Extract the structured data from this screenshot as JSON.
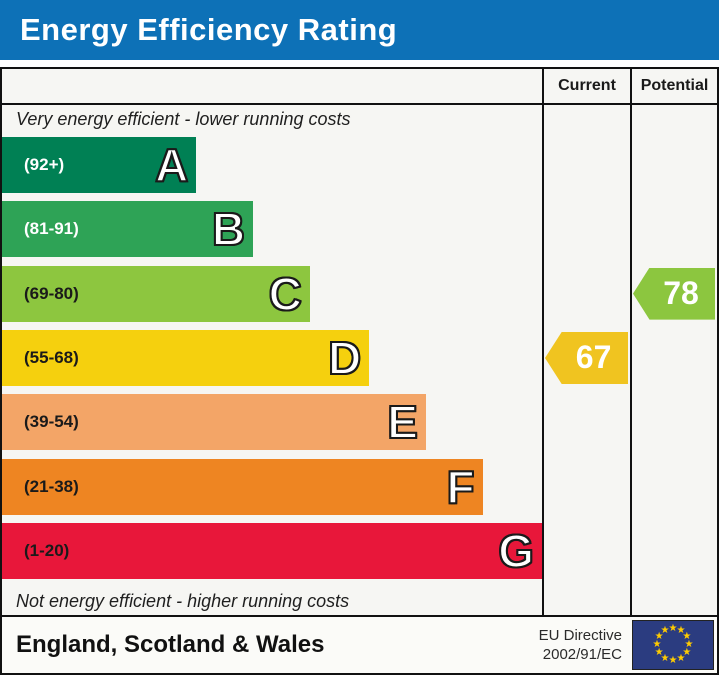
{
  "title": "Energy Efficiency Rating",
  "columns": {
    "current": "Current",
    "potential": "Potential"
  },
  "notes": {
    "top": "Very energy efficient - lower running costs",
    "bottom": "Not energy efficient - higher running costs"
  },
  "bands": [
    {
      "letter": "A",
      "range": "(92+)",
      "color": "#008054",
      "width_pct": 36,
      "label_color": "#ffffff"
    },
    {
      "letter": "B",
      "range": "(81-91)",
      "color": "#2ea356",
      "width_pct": 46.5,
      "label_color": "#ffffff"
    },
    {
      "letter": "C",
      "range": "(69-80)",
      "color": "#8dc63f",
      "width_pct": 57,
      "label_color": "#1a1a1a"
    },
    {
      "letter": "D",
      "range": "(55-68)",
      "color": "#f5d00e",
      "width_pct": 68,
      "label_color": "#1a1a1a"
    },
    {
      "letter": "E",
      "range": "(39-54)",
      "color": "#f3a567",
      "width_pct": 78.5,
      "label_color": "#1a1a1a"
    },
    {
      "letter": "F",
      "range": "(21-38)",
      "color": "#ee8522",
      "width_pct": 89,
      "label_color": "#1a1a1a"
    },
    {
      "letter": "G",
      "range": "(1-20)",
      "color": "#e8173a",
      "width_pct": 100,
      "label_color": "#1a1a1a"
    }
  ],
  "ratings": {
    "current": {
      "value": "67",
      "band": "D",
      "color": "#f0c420"
    },
    "potential": {
      "value": "78",
      "band": "C",
      "color": "#8cc63f"
    }
  },
  "footer": {
    "region": "England, Scotland & Wales",
    "directive_line1": "EU Directive",
    "directive_line2": "2002/91/EC",
    "eu_flag_color": "#2b3c80",
    "eu_star_color": "#ffcc00"
  },
  "chart_data": {
    "type": "bar",
    "title": "Energy Efficiency Rating",
    "categories": [
      "A (92+)",
      "B (81-91)",
      "C (69-80)",
      "D (55-68)",
      "E (39-54)",
      "F (21-38)",
      "G (1-20)"
    ],
    "values": [
      36,
      46.5,
      57,
      68,
      78.5,
      89,
      100
    ],
    "series_note": "bar lengths are band widths in % of chart column; bands are score ranges",
    "band_colors": [
      "#008054",
      "#2ea356",
      "#8dc63f",
      "#f5d00e",
      "#f3a567",
      "#ee8522",
      "#e8173a"
    ],
    "annotations": {
      "current_rating": 67,
      "current_band": "D",
      "potential_rating": 78,
      "potential_band": "C"
    },
    "xlabel": "",
    "ylabel": "",
    "legend": [
      "Current",
      "Potential"
    ],
    "footer_region": "England, Scotland & Wales",
    "footer_directive": "EU Directive 2002/91/EC"
  }
}
